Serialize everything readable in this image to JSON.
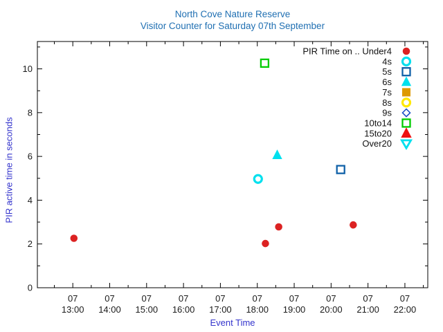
{
  "chart_data": {
    "type": "scatter",
    "title": "North Cove Nature Reserve",
    "subtitle": "Visitor Counter for Saturday 07th September",
    "xlabel": "Event Time",
    "ylabel": "PIR active time in seconds",
    "x_axis": {
      "range_hours": [
        12.04,
        22.62
      ],
      "major_ticks": [
        {
          "hour": 13,
          "line1": "07",
          "line2": "13:00"
        },
        {
          "hour": 14,
          "line1": "07",
          "line2": "14:00"
        },
        {
          "hour": 15,
          "line1": "07",
          "line2": "15:00"
        },
        {
          "hour": 16,
          "line1": "07",
          "line2": "16:00"
        },
        {
          "hour": 17,
          "line1": "07",
          "line2": "17:00"
        },
        {
          "hour": 18,
          "line1": "07",
          "line2": "18:00"
        },
        {
          "hour": 19,
          "line1": "07",
          "line2": "19:00"
        },
        {
          "hour": 20,
          "line1": "07",
          "line2": "20:00"
        },
        {
          "hour": 21,
          "line1": "07",
          "line2": "21:00"
        },
        {
          "hour": 22,
          "line1": "07",
          "line2": "22:00"
        }
      ],
      "minor_ticks_hours": [
        12.5,
        13.5,
        14.5,
        15.5,
        16.5,
        17.5,
        18.5,
        19.5,
        20.5,
        21.5,
        22.5
      ]
    },
    "y_axis": {
      "range": [
        0,
        11.25
      ],
      "major_ticks": [
        {
          "value": 0,
          "label": "0"
        },
        {
          "value": 2,
          "label": "2"
        },
        {
          "value": 4,
          "label": "4"
        },
        {
          "value": 6,
          "label": "6"
        },
        {
          "value": 8,
          "label": "8"
        },
        {
          "value": 10,
          "label": "10"
        }
      ],
      "minor_ticks_values": [
        1,
        3,
        5,
        7,
        9,
        11
      ]
    },
    "legend": {
      "entries": [
        {
          "label": "PIR Time on .. Under4",
          "marker": "circle-filled",
          "color": "#dc2222",
          "size": 11
        },
        {
          "label": "4s",
          "marker": "circle-open",
          "color": "#00e0ee",
          "size": 11
        },
        {
          "label": "5s",
          "marker": "square-open",
          "color": "#1061a8",
          "size": 11
        },
        {
          "label": "6s",
          "marker": "triangle-up-filled",
          "color": "#00e0ee",
          "size": 13
        },
        {
          "label": "7s",
          "marker": "square-filled",
          "color": "#dd9900",
          "size": 12
        },
        {
          "label": "8s",
          "marker": "circle-open",
          "color": "#ffe800",
          "size": 11
        },
        {
          "label": "9s",
          "marker": "diamond-open",
          "color": "#1e52c8",
          "size": 10
        },
        {
          "label": "10to14",
          "marker": "square-open",
          "color": "#00cc00",
          "size": 11
        },
        {
          "label": "15to20",
          "marker": "triangle-up-filled",
          "color": "#ee1111",
          "size": 14
        },
        {
          "label": "Over20",
          "marker": "triangle-down-open",
          "color": "#00e0ee",
          "size": 12
        }
      ]
    },
    "series": [
      {
        "name": "Under4",
        "marker": "circle-filled",
        "color": "#dc2222",
        "size": 11,
        "points": [
          {
            "time": "13:02",
            "hour": 13.03,
            "seconds": 2.26
          },
          {
            "time": "18:13",
            "hour": 18.22,
            "seconds": 2.02
          },
          {
            "time": "18:35",
            "hour": 18.58,
            "seconds": 2.78
          },
          {
            "time": "20:36",
            "hour": 20.6,
            "seconds": 2.87
          }
        ]
      },
      {
        "name": "4s",
        "marker": "circle-open",
        "color": "#00e0ee",
        "size": 11,
        "points": [
          {
            "time": "18:01",
            "hour": 18.02,
            "seconds": 4.97
          }
        ]
      },
      {
        "name": "5s",
        "marker": "square-open",
        "color": "#1061a8",
        "size": 11,
        "points": [
          {
            "time": "20:16",
            "hour": 20.26,
            "seconds": 5.4
          }
        ]
      },
      {
        "name": "6s",
        "marker": "triangle-up-filled",
        "color": "#00e0ee",
        "size": 13,
        "points": [
          {
            "time": "18:32",
            "hour": 18.54,
            "seconds": 6.06
          }
        ]
      },
      {
        "name": "7s",
        "marker": "square-filled",
        "color": "#dd9900",
        "size": 12,
        "points": []
      },
      {
        "name": "8s",
        "marker": "circle-open",
        "color": "#ffe800",
        "size": 11,
        "points": []
      },
      {
        "name": "9s",
        "marker": "diamond-open",
        "color": "#1e52c8",
        "size": 10,
        "points": []
      },
      {
        "name": "10to14",
        "marker": "square-open",
        "color": "#00cc00",
        "size": 11,
        "points": [
          {
            "time": "18:12",
            "hour": 18.2,
            "seconds": 10.26
          }
        ]
      },
      {
        "name": "15to20",
        "marker": "triangle-up-filled",
        "color": "#ee1111",
        "size": 14,
        "points": []
      },
      {
        "name": "Over20",
        "marker": "triangle-down-open",
        "color": "#00e0ee",
        "size": 12,
        "points": []
      }
    ],
    "colors": {
      "title": "#1f6fb2",
      "axis_label": "#3333cc",
      "tick_text": "#1a1a1a",
      "legend_text": "#111111",
      "axis": "#000000",
      "background": "#ffffff"
    },
    "layout_hints": {
      "legend_position": "top-right-inside",
      "grid": "off",
      "tick_style": "inward, mirrored on all four sides"
    }
  }
}
